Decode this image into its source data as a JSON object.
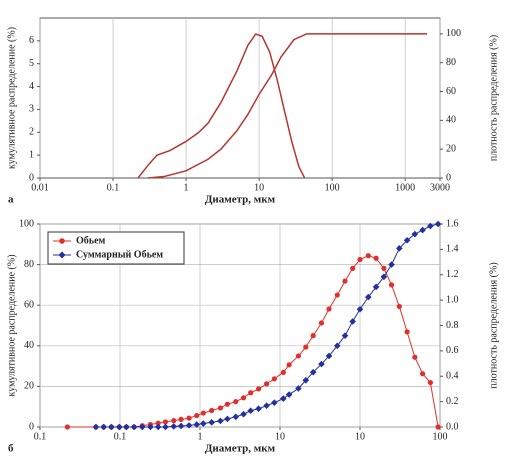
{
  "chart_data": [
    {
      "type": "line",
      "label": "а",
      "xlabel": "Диаметр, мкм",
      "ylabel": "кумулятивное распределение (%)",
      "y2label": "плотность распределения (%)",
      "xscale": "log",
      "xlim": [
        0.01,
        3000
      ],
      "xticks": [
        0.01,
        0.1,
        1,
        10,
        100,
        1000,
        3000
      ],
      "ylim": [
        0,
        7
      ],
      "yticks": [
        0,
        1,
        2,
        3,
        4,
        5,
        6
      ],
      "y2lim": [
        0,
        111
      ],
      "y2ticks": [
        0,
        20,
        40,
        60,
        80,
        100
      ],
      "grid": true,
      "series": [
        {
          "color": "#b3372f",
          "axis": "y",
          "x": [
            0.22,
            0.3,
            0.4,
            0.6,
            1,
            1.5,
            2,
            3,
            5,
            7,
            9,
            11,
            14,
            18,
            22,
            28,
            35,
            42
          ],
          "values": [
            0,
            0.55,
            1.0,
            1.2,
            1.6,
            2.0,
            2.4,
            3.3,
            4.7,
            5.8,
            6.3,
            6.2,
            5.5,
            4.2,
            3.0,
            1.6,
            0.5,
            0
          ]
        },
        {
          "color": "#b3372f",
          "axis": "y2",
          "x": [
            0.3,
            0.5,
            1,
            2,
            3,
            5,
            7,
            10,
            15,
            20,
            30,
            45,
            100,
            1000,
            2000
          ],
          "values": [
            0,
            1,
            5,
            13,
            20,
            33,
            44,
            58,
            72,
            84,
            96,
            100,
            100,
            100,
            100
          ]
        }
      ]
    },
    {
      "type": "line",
      "label": "б",
      "xlabel": "Диаметр, мкм",
      "ylabel": "кумулятивное распределение (%)",
      "y2label": "плотность распределения (%)",
      "xscale": "log",
      "xlim": [
        0.01,
        1000
      ],
      "xticks": [
        {
          "value": 0.01,
          "label": "0.1"
        },
        0.1,
        1,
        10,
        {
          "value": 100,
          "label": "10"
        },
        {
          "value": 1000,
          "label": "100"
        }
      ],
      "ylim": [
        0,
        100
      ],
      "yticks": [
        0,
        20,
        40,
        60,
        80,
        100
      ],
      "y2lim": [
        0,
        1.6
      ],
      "y2ticks": [
        {
          "value": 0,
          "label": "0.0"
        },
        0.2,
        0.4,
        0.6,
        0.8,
        {
          "value": 1,
          "label": "1.0"
        },
        1.2,
        1.4,
        1.6
      ],
      "grid": true,
      "legend": "upper left",
      "series": [
        {
          "name": "Обьем",
          "color": "#e0302c",
          "marker": "circle",
          "axis": "y2",
          "x": [
            0.022,
            0.05,
            0.0625,
            0.078,
            0.098,
            0.12,
            0.15,
            0.19,
            0.24,
            0.3,
            0.37,
            0.47,
            0.58,
            0.73,
            0.91,
            1.1,
            1.4,
            1.8,
            2.2,
            2.8,
            3.5,
            4.3,
            5.4,
            6.8,
            8.5,
            11,
            13,
            17,
            21,
            26,
            33,
            41,
            52,
            65,
            81,
            100,
            127,
            159,
            199,
            248,
            310,
            388,
            485,
            606,
            758,
            947
          ],
          "values": [
            0,
            0,
            0,
            0,
            0,
            0,
            0,
            0.01,
            0.02,
            0.03,
            0.04,
            0.05,
            0.06,
            0.07,
            0.09,
            0.11,
            0.13,
            0.15,
            0.18,
            0.2,
            0.23,
            0.27,
            0.3,
            0.34,
            0.38,
            0.43,
            0.49,
            0.56,
            0.63,
            0.72,
            0.82,
            0.93,
            1.04,
            1.15,
            1.25,
            1.32,
            1.35,
            1.33,
            1.25,
            1.12,
            0.95,
            0.75,
            0.55,
            0.42,
            0.35,
            0
          ]
        },
        {
          "name": "Суммарный Обьем",
          "color": "#2230a0",
          "marker": "diamond",
          "axis": "y",
          "x": [
            0.05,
            0.0625,
            0.078,
            0.098,
            0.12,
            0.15,
            0.19,
            0.24,
            0.3,
            0.37,
            0.47,
            0.58,
            0.73,
            0.91,
            1.1,
            1.4,
            1.8,
            2.2,
            2.8,
            3.5,
            4.3,
            5.4,
            6.8,
            8.5,
            11,
            13,
            17,
            21,
            26,
            33,
            41,
            52,
            65,
            81,
            100,
            127,
            159,
            199,
            248,
            310,
            388,
            485,
            606,
            758,
            947
          ],
          "values": [
            0,
            0,
            0,
            0,
            0,
            0,
            0,
            0,
            0,
            0,
            0.3,
            0.5,
            0.8,
            1.2,
            1.7,
            2.3,
            3,
            4,
            5,
            6.3,
            8,
            9,
            10.5,
            12,
            14,
            16,
            19,
            23,
            27,
            31,
            35,
            40,
            45,
            52,
            58,
            64,
            69,
            74,
            80,
            88,
            92,
            95,
            97,
            99,
            100
          ]
        }
      ]
    }
  ]
}
